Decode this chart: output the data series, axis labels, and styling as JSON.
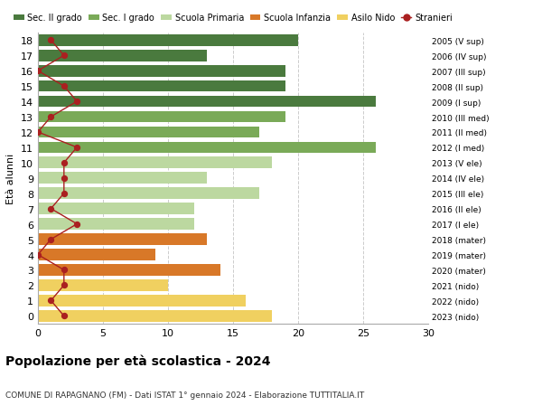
{
  "ages": [
    18,
    17,
    16,
    15,
    14,
    13,
    12,
    11,
    10,
    9,
    8,
    7,
    6,
    5,
    4,
    3,
    2,
    1,
    0
  ],
  "bar_values": [
    20,
    13,
    19,
    19,
    26,
    19,
    17,
    26,
    18,
    13,
    17,
    12,
    12,
    13,
    9,
    14,
    10,
    16,
    18
  ],
  "stranieri_values": [
    1,
    2,
    0,
    2,
    3,
    1,
    0,
    3,
    2,
    2,
    2,
    1,
    3,
    1,
    0,
    2,
    2,
    1,
    2
  ],
  "right_labels": [
    "2005 (V sup)",
    "2006 (IV sup)",
    "2007 (III sup)",
    "2008 (II sup)",
    "2009 (I sup)",
    "2010 (III med)",
    "2011 (II med)",
    "2012 (I med)",
    "2013 (V ele)",
    "2014 (IV ele)",
    "2015 (III ele)",
    "2016 (II ele)",
    "2017 (I ele)",
    "2018 (mater)",
    "2019 (mater)",
    "2020 (mater)",
    "2021 (nido)",
    "2022 (nido)",
    "2023 (nido)"
  ],
  "bar_colors": [
    "#4a7a3e",
    "#4a7a3e",
    "#4a7a3e",
    "#4a7a3e",
    "#4a7a3e",
    "#7aaa58",
    "#7aaa58",
    "#7aaa58",
    "#bcd8a0",
    "#bcd8a0",
    "#bcd8a0",
    "#bcd8a0",
    "#bcd8a0",
    "#d87828",
    "#d87828",
    "#d87828",
    "#f0d060",
    "#f0d060",
    "#f0d060"
  ],
  "legend_labels": [
    "Sec. II grado",
    "Sec. I grado",
    "Scuola Primaria",
    "Scuola Infanzia",
    "Asilo Nido",
    "Stranieri"
  ],
  "legend_colors": [
    "#4a7a3e",
    "#7aaa58",
    "#bcd8a0",
    "#d87828",
    "#f0d060",
    "#aa2020"
  ],
  "stranieri_color": "#aa2020",
  "line_color": "#aa2020",
  "ylabel": "Età alunni",
  "title": "Popolazione per età scolastica - 2024",
  "subtitle": "COMUNE DI RAPAGNANO (FM) - Dati ISTAT 1° gennaio 2024 - Elaborazione TUTTITALIA.IT",
  "xlim": [
    0,
    30
  ],
  "xticks": [
    0,
    5,
    10,
    15,
    20,
    25,
    30
  ],
  "background_color": "#ffffff",
  "grid_color": "#cccccc"
}
